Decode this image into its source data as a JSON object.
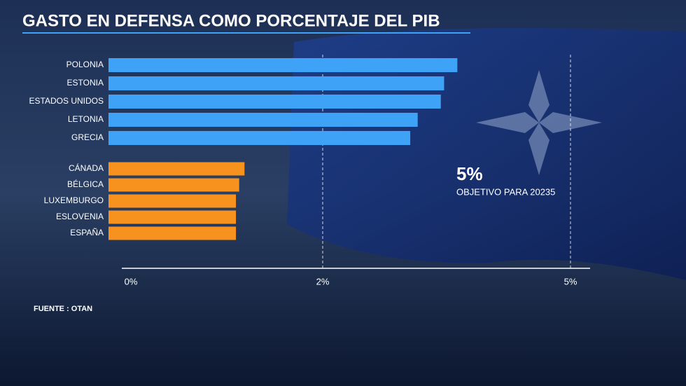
{
  "chart_data": {
    "type": "bar",
    "orientation": "horizontal",
    "title": "GASTO EN DEFENSA COMO PORCENTAJE DEL PIB",
    "categories": [
      "POLONIA",
      "ESTONIA",
      "ESTADOS UNIDOS",
      "LETONIA",
      "GRECIA",
      "CÁNADA",
      "BÉLGICA",
      "LUXEMBURGO",
      "ESLOVENIA",
      "ESPAÑA"
    ],
    "values": [
      3.63,
      3.47,
      3.43,
      3.15,
      3.06,
      1.27,
      1.22,
      1.19,
      1.19,
      1.19
    ],
    "colors": [
      "#3ea2f7",
      "#3ea2f7",
      "#3ea2f7",
      "#3ea2f7",
      "#3ea2f7",
      "#f7921e",
      "#f7921e",
      "#f7921e",
      "#f7921e",
      "#f7921e"
    ],
    "xlim": [
      0,
      5
    ],
    "xticks": [
      {
        "value": 0,
        "label": "0%"
      },
      {
        "value": 2,
        "label": "2%"
      },
      {
        "value": 5,
        "label": "5%"
      }
    ],
    "grid": true,
    "annotation": {
      "value": "5%",
      "text": "OBJETIVO PARA 20235"
    },
    "source": "FUENTE : OTAN"
  }
}
